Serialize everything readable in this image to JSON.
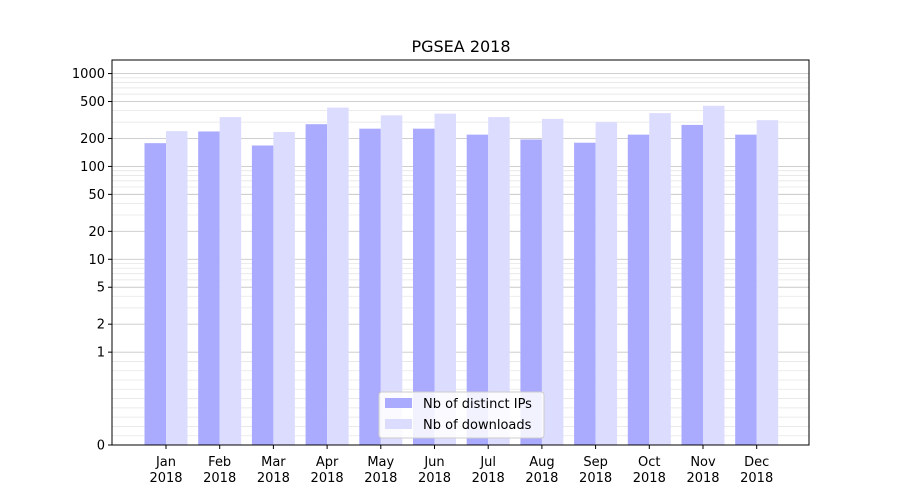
{
  "chart_data": {
    "type": "bar",
    "title": "PGSEA 2018",
    "xlabel": "",
    "ylabel": "",
    "scale": "symlog",
    "categories": [
      [
        "Jan",
        "2018"
      ],
      [
        "Feb",
        "2018"
      ],
      [
        "Mar",
        "2018"
      ],
      [
        "Apr",
        "2018"
      ],
      [
        "May",
        "2018"
      ],
      [
        "Jun",
        "2018"
      ],
      [
        "Jul",
        "2018"
      ],
      [
        "Aug",
        "2018"
      ],
      [
        "Sep",
        "2018"
      ],
      [
        "Oct",
        "2018"
      ],
      [
        "Nov",
        "2018"
      ],
      [
        "Dec",
        "2018"
      ]
    ],
    "series": [
      {
        "name": "Nb of distinct IPs",
        "color": "#aaaaff",
        "values": [
          178,
          238,
          168,
          285,
          255,
          255,
          220,
          195,
          180,
          220,
          280,
          220
        ]
      },
      {
        "name": "Nb of downloads",
        "color": "#dcdcff",
        "values": [
          240,
          340,
          235,
          430,
          355,
          370,
          340,
          325,
          300,
          375,
          450,
          315
        ]
      }
    ],
    "yticks": [
      0,
      1,
      2,
      5,
      10,
      20,
      50,
      100,
      200,
      500,
      1000
    ],
    "ytick_labels": [
      "0",
      "1",
      "2",
      "5",
      "10",
      "20",
      "50",
      "100",
      "200",
      "500",
      "1000"
    ],
    "ylim": [
      0,
      1400
    ],
    "grid": true,
    "legend_position": "bottom-center"
  }
}
